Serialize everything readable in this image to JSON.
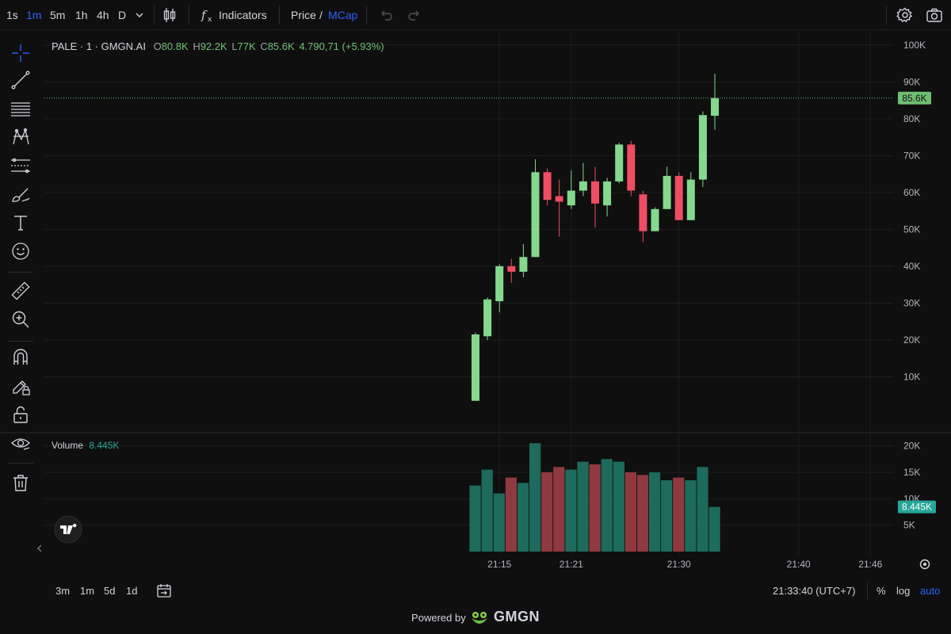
{
  "toolbar": {
    "intervals": [
      "1s",
      "1m",
      "5m",
      "1h",
      "4h",
      "D"
    ],
    "active_interval": "1m",
    "indicators_label": "Indicators",
    "price_label": "Price",
    "price_sep": "/",
    "mcap_label": "MCap"
  },
  "legend": {
    "symbol": "PALE · 1 · GMGN.AI",
    "o_key": "O",
    "o_val": "80.8K",
    "h_key": "H",
    "h_val": "92.2K",
    "l_key": "L",
    "l_val": "77K",
    "c_key": "C",
    "c_val": "85.6K",
    "change": "4.790,71 (+5.93%)"
  },
  "volume_legend": {
    "label": "Volume",
    "value": "8.445K"
  },
  "bottom": {
    "ranges": [
      "3m",
      "1m",
      "5d",
      "1d"
    ],
    "time": "21:33:40 (UTC+7)",
    "percent": "%",
    "log": "log",
    "auto": "auto"
  },
  "footer": {
    "powered": "Powered by",
    "brand": "GMGN"
  },
  "colors": {
    "up": "#84d98e",
    "down": "#ee4d64",
    "vol_up": "#1d6b5d",
    "vol_down": "#8f3a40",
    "accent": "#2962ff"
  },
  "chart_data": {
    "type": "candlestick",
    "price_axis": {
      "ticks": [
        "100K",
        "90K",
        "80K",
        "70K",
        "60K",
        "50K",
        "40K",
        "30K",
        "20K",
        "10K"
      ],
      "tick_values": [
        100000,
        90000,
        80000,
        70000,
        60000,
        50000,
        40000,
        30000,
        20000,
        10000
      ]
    },
    "last_price_label": "85.6K",
    "last_price": 85600,
    "volume_axis": {
      "ticks": [
        "20K",
        "15K",
        "10K",
        "5K"
      ],
      "tick_values": [
        20000,
        15000,
        10000,
        5000
      ]
    },
    "last_volume_label": "8.445K",
    "last_volume": 8445,
    "x_ticks": [
      {
        "label": "21:15",
        "minute": 15
      },
      {
        "label": "21:21",
        "minute": 21
      },
      {
        "label": "21:30",
        "minute": 30
      },
      {
        "label": "21:40",
        "minute": 40
      },
      {
        "label": "21:46",
        "minute": 46
      }
    ],
    "candles": [
      {
        "minute": 13,
        "o": 3500,
        "h": 22000,
        "l": 3500,
        "c": 21500,
        "v": 12500
      },
      {
        "minute": 14,
        "o": 21000,
        "h": 31500,
        "l": 20000,
        "c": 31000,
        "v": 15500
      },
      {
        "minute": 15,
        "o": 30500,
        "h": 40500,
        "l": 27500,
        "c": 40000,
        "v": 11000
      },
      {
        "minute": 16,
        "o": 40000,
        "h": 42000,
        "l": 35500,
        "c": 38500,
        "v": 14000
      },
      {
        "minute": 17,
        "o": 38500,
        "h": 46000,
        "l": 37000,
        "c": 42500,
        "v": 13000
      },
      {
        "minute": 18,
        "o": 42500,
        "h": 69000,
        "l": 42500,
        "c": 65500,
        "v": 20500
      },
      {
        "minute": 19,
        "o": 65500,
        "h": 66500,
        "l": 56500,
        "c": 58000,
        "v": 15000
      },
      {
        "minute": 20,
        "o": 59000,
        "h": 63500,
        "l": 48000,
        "c": 57500,
        "v": 16000
      },
      {
        "minute": 21,
        "o": 56500,
        "h": 66000,
        "l": 55500,
        "c": 60500,
        "v": 15500
      },
      {
        "minute": 22,
        "o": 60500,
        "h": 68000,
        "l": 59000,
        "c": 63000,
        "v": 17000
      },
      {
        "minute": 23,
        "o": 63000,
        "h": 67000,
        "l": 50500,
        "c": 57000,
        "v": 16500
      },
      {
        "minute": 24,
        "o": 56500,
        "h": 64000,
        "l": 53500,
        "c": 63000,
        "v": 17500
      },
      {
        "minute": 25,
        "o": 63000,
        "h": 73500,
        "l": 62500,
        "c": 73000,
        "v": 17000
      },
      {
        "minute": 26,
        "o": 73000,
        "h": 74000,
        "l": 59000,
        "c": 60500,
        "v": 15000
      },
      {
        "minute": 27,
        "o": 59500,
        "h": 60500,
        "l": 46500,
        "c": 49500,
        "v": 14500
      },
      {
        "minute": 28,
        "o": 49500,
        "h": 56000,
        "l": 49500,
        "c": 55500,
        "v": 15000
      },
      {
        "minute": 29,
        "o": 55500,
        "h": 67000,
        "l": 55500,
        "c": 64500,
        "v": 13500
      },
      {
        "minute": 30,
        "o": 64500,
        "h": 65500,
        "l": 52500,
        "c": 52500,
        "v": 14000
      },
      {
        "minute": 31,
        "o": 52500,
        "h": 65500,
        "l": 52500,
        "c": 63500,
        "v": 13500
      },
      {
        "minute": 32,
        "o": 63500,
        "h": 82000,
        "l": 61500,
        "c": 81000,
        "v": 16000
      },
      {
        "minute": 33,
        "o": 80800,
        "h": 92200,
        "l": 77000,
        "c": 85600,
        "v": 8445
      }
    ]
  }
}
